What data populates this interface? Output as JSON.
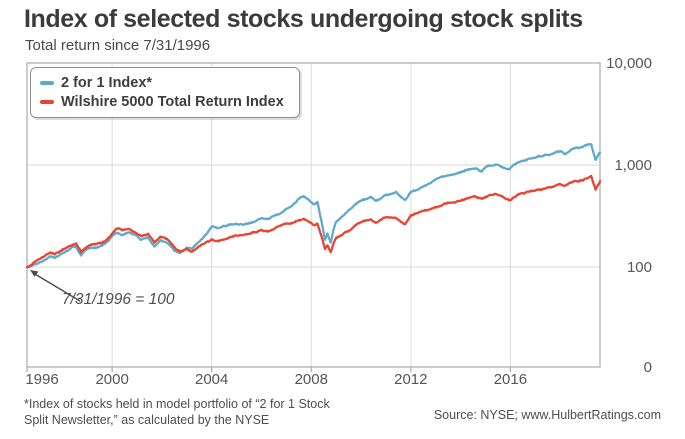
{
  "header": {
    "title": "Index of selected stocks undergoing stock splits",
    "subtitle": "Total return since 7/31/1996"
  },
  "legend": {
    "items": [
      {
        "label": "2 for 1 Index*",
        "color": "#5FA9CC"
      },
      {
        "label": "Wilshire 5000 Total Return Index",
        "color": "#E94430"
      }
    ]
  },
  "annotation": {
    "text": "7/31/1996 = 100"
  },
  "footnotes": {
    "left_line1": "*Index of stocks held in model portfolio of “2 for 1 Stock",
    "left_line2": "Split Newsletter,” as calculated by the NYSE",
    "source": "Source: NYSE; www.HulbertRatings.com"
  },
  "colors": {
    "blue_line": "#5FA9CC",
    "red_line": "#E94430",
    "grid": "#dcdcdc",
    "plot_border": "#ababab",
    "annotation_arrow": "#4a4a4a"
  },
  "chart_data": {
    "type": "line",
    "title": "Index of selected stocks undergoing stock splits",
    "subtitle": "Total return since 7/31/1996",
    "grid": true,
    "legend_position": "top-left",
    "base_value_note": "7/31/1996 = 100",
    "x_axis": {
      "domain": [
        1996.58,
        2019.6
      ],
      "ticks": [
        1996,
        2000,
        2004,
        2008,
        2012,
        2016
      ]
    },
    "y_axis": {
      "scale": "log",
      "ticks": [
        {
          "label": "10,000",
          "value": 10000
        },
        {
          "label": "1,000",
          "value": 1000
        },
        {
          "label": "100",
          "value": 100
        },
        {
          "label": "0",
          "value": "axis-floor"
        }
      ]
    },
    "series": [
      {
        "name": "2 for 1 Index*",
        "color": "#5FA9CC",
        "points": [
          [
            1996.58,
            100
          ],
          [
            1996.8,
            105
          ],
          [
            1997.0,
            111
          ],
          [
            1997.25,
            118
          ],
          [
            1997.5,
            130
          ],
          [
            1997.7,
            126
          ],
          [
            1998.0,
            139
          ],
          [
            1998.3,
            151
          ],
          [
            1998.55,
            158
          ],
          [
            1998.75,
            131
          ],
          [
            1999.0,
            149
          ],
          [
            1999.3,
            156
          ],
          [
            1999.6,
            167
          ],
          [
            1999.9,
            188
          ],
          [
            2000.15,
            215
          ],
          [
            2000.4,
            205
          ],
          [
            2000.65,
            218
          ],
          [
            2000.9,
            204
          ],
          [
            2001.15,
            186
          ],
          [
            2001.45,
            196
          ],
          [
            2001.7,
            161
          ],
          [
            2001.95,
            183
          ],
          [
            2002.2,
            172
          ],
          [
            2002.5,
            148
          ],
          [
            2002.75,
            140
          ],
          [
            2003.0,
            153
          ],
          [
            2003.2,
            147
          ],
          [
            2003.5,
            174
          ],
          [
            2003.75,
            205
          ],
          [
            2004.0,
            248
          ],
          [
            2004.25,
            240
          ],
          [
            2004.5,
            248
          ],
          [
            2004.75,
            258
          ],
          [
            2005.0,
            265
          ],
          [
            2005.3,
            258
          ],
          [
            2005.6,
            278
          ],
          [
            2006.0,
            308
          ],
          [
            2006.3,
            298
          ],
          [
            2006.6,
            325
          ],
          [
            2006.9,
            355
          ],
          [
            2007.2,
            400
          ],
          [
            2007.45,
            460
          ],
          [
            2007.7,
            480
          ],
          [
            2007.9,
            445
          ],
          [
            2008.1,
            405
          ],
          [
            2008.25,
            425
          ],
          [
            2008.4,
            290
          ],
          [
            2008.55,
            185
          ],
          [
            2008.65,
            215
          ],
          [
            2008.78,
            175
          ],
          [
            2008.9,
            240
          ],
          [
            2009.0,
            285
          ],
          [
            2009.2,
            315
          ],
          [
            2009.5,
            365
          ],
          [
            2009.8,
            425
          ],
          [
            2010.1,
            460
          ],
          [
            2010.4,
            490
          ],
          [
            2010.6,
            445
          ],
          [
            2010.9,
            505
          ],
          [
            2011.15,
            530
          ],
          [
            2011.4,
            550
          ],
          [
            2011.6,
            495
          ],
          [
            2011.78,
            465
          ],
          [
            2012.0,
            545
          ],
          [
            2012.3,
            595
          ],
          [
            2012.6,
            635
          ],
          [
            2013.0,
            715
          ],
          [
            2013.4,
            775
          ],
          [
            2013.8,
            840
          ],
          [
            2014.2,
            890
          ],
          [
            2014.6,
            945
          ],
          [
            2014.85,
            880
          ],
          [
            2015.1,
            960
          ],
          [
            2015.4,
            1000
          ],
          [
            2015.7,
            930
          ],
          [
            2015.95,
            890
          ],
          [
            2016.2,
            1010
          ],
          [
            2016.5,
            1080
          ],
          [
            2016.8,
            1140
          ],
          [
            2017.1,
            1200
          ],
          [
            2017.4,
            1260
          ],
          [
            2017.7,
            1320
          ],
          [
            2018.0,
            1400
          ],
          [
            2018.2,
            1310
          ],
          [
            2018.5,
            1440
          ],
          [
            2018.8,
            1520
          ],
          [
            2019.0,
            1560
          ],
          [
            2019.25,
            1620
          ],
          [
            2019.42,
            1130
          ],
          [
            2019.6,
            1320
          ]
        ]
      },
      {
        "name": "Wilshire 5000 Total Return Index",
        "color": "#E94430",
        "points": [
          [
            1996.58,
            100
          ],
          [
            1996.8,
            107
          ],
          [
            1997.0,
            114
          ],
          [
            1997.25,
            123
          ],
          [
            1997.5,
            137
          ],
          [
            1997.7,
            133
          ],
          [
            1998.0,
            147
          ],
          [
            1998.3,
            161
          ],
          [
            1998.55,
            167
          ],
          [
            1998.75,
            139
          ],
          [
            1999.0,
            159
          ],
          [
            1999.3,
            169
          ],
          [
            1999.6,
            176
          ],
          [
            1999.9,
            200
          ],
          [
            2000.15,
            242
          ],
          [
            2000.4,
            236
          ],
          [
            2000.65,
            244
          ],
          [
            2000.9,
            226
          ],
          [
            2001.15,
            206
          ],
          [
            2001.45,
            213
          ],
          [
            2001.7,
            176
          ],
          [
            2001.95,
            197
          ],
          [
            2002.2,
            186
          ],
          [
            2002.5,
            153
          ],
          [
            2002.75,
            138
          ],
          [
            2003.0,
            149
          ],
          [
            2003.2,
            143
          ],
          [
            2003.5,
            163
          ],
          [
            2003.75,
            177
          ],
          [
            2004.0,
            188
          ],
          [
            2004.25,
            184
          ],
          [
            2004.5,
            191
          ],
          [
            2004.75,
            199
          ],
          [
            2005.0,
            203
          ],
          [
            2005.3,
            201
          ],
          [
            2005.6,
            213
          ],
          [
            2006.0,
            229
          ],
          [
            2006.3,
            225
          ],
          [
            2006.6,
            240
          ],
          [
            2006.9,
            257
          ],
          [
            2007.2,
            275
          ],
          [
            2007.45,
            292
          ],
          [
            2007.7,
            299
          ],
          [
            2007.9,
            286
          ],
          [
            2008.1,
            263
          ],
          [
            2008.25,
            273
          ],
          [
            2008.4,
            205
          ],
          [
            2008.55,
            150
          ],
          [
            2008.65,
            163
          ],
          [
            2008.78,
            140
          ],
          [
            2008.9,
            172
          ],
          [
            2009.0,
            192
          ],
          [
            2009.2,
            207
          ],
          [
            2009.5,
            232
          ],
          [
            2009.8,
            257
          ],
          [
            2010.1,
            274
          ],
          [
            2010.4,
            288
          ],
          [
            2010.6,
            264
          ],
          [
            2010.9,
            295
          ],
          [
            2011.15,
            303
          ],
          [
            2011.4,
            312
          ],
          [
            2011.6,
            284
          ],
          [
            2011.78,
            266
          ],
          [
            2012.0,
            320
          ],
          [
            2012.3,
            338
          ],
          [
            2012.6,
            352
          ],
          [
            2013.0,
            384
          ],
          [
            2013.4,
            413
          ],
          [
            2013.8,
            443
          ],
          [
            2014.2,
            466
          ],
          [
            2014.6,
            488
          ],
          [
            2014.85,
            462
          ],
          [
            2015.1,
            498
          ],
          [
            2015.4,
            510
          ],
          [
            2015.7,
            476
          ],
          [
            2015.95,
            458
          ],
          [
            2016.2,
            500
          ],
          [
            2016.5,
            525
          ],
          [
            2016.8,
            550
          ],
          [
            2017.1,
            575
          ],
          [
            2017.4,
            600
          ],
          [
            2017.7,
            628
          ],
          [
            2018.0,
            655
          ],
          [
            2018.2,
            618
          ],
          [
            2018.5,
            672
          ],
          [
            2018.8,
            710
          ],
          [
            2019.0,
            735
          ],
          [
            2019.25,
            790
          ],
          [
            2019.42,
            580
          ],
          [
            2019.6,
            695
          ]
        ]
      }
    ]
  }
}
